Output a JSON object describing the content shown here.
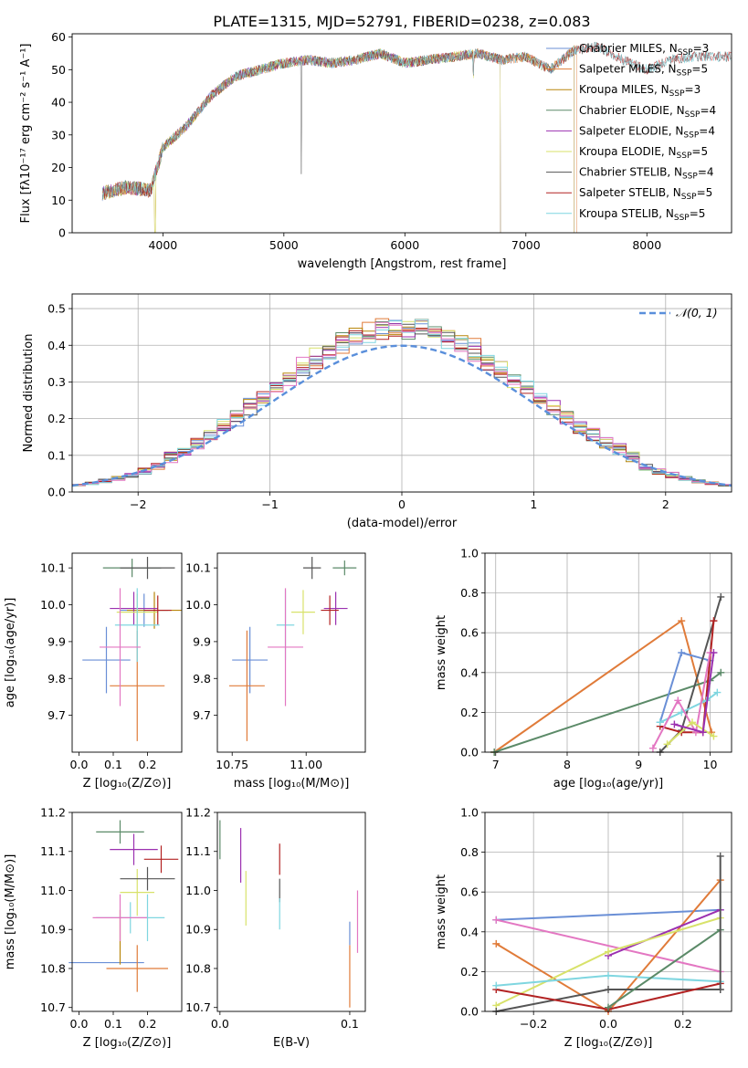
{
  "title": "PLATE=1315, MJD=52791, FIBERID=0238, z=0.083",
  "colors": {
    "chabrier_miles": "#6a8fd6",
    "salpeter_miles": "#e07b39",
    "kroupa_miles": "#b8860b",
    "chabrier_elodie": "#5b8a68",
    "salpeter_elodie": "#9b30b0",
    "kroupa_elodie": "#d8e26a",
    "chabrier_stelib": "#555555",
    "salpeter_stelib": "#b22222",
    "kroupa_stelib": "#7fd6e0",
    "pink": "#e377c2",
    "gaussian": "#5a8fdb",
    "grid": "#b0b0b0"
  },
  "chart_data": [
    {
      "type": "line",
      "name": "spectrum",
      "xlabel": "wavelength [Angstrom, rest frame]",
      "ylabel": "Flux [fλ10⁻¹⁷ erg cm⁻² s⁻¹ A⁻¹]",
      "xlim": [
        3250,
        8700
      ],
      "ylim": [
        0,
        61
      ],
      "xticks": [
        "4000",
        "5000",
        "6000",
        "7000",
        "8000"
      ],
      "yticks": [
        "0",
        "10",
        "20",
        "30",
        "40",
        "50",
        "60"
      ],
      "grid": false,
      "legend_position": "top-right",
      "x": [
        3500,
        3700,
        3900,
        4000,
        4200,
        4400,
        4600,
        4800,
        5000,
        5200,
        5400,
        5600,
        5800,
        6000,
        6200,
        6400,
        6600,
        6800,
        7000,
        7200,
        7400,
        7600,
        7800,
        8000,
        8200,
        8400
      ],
      "y": [
        12,
        14,
        13,
        26,
        33,
        42,
        48,
        50,
        52,
        53,
        52,
        53,
        55,
        52,
        53,
        54,
        55,
        53,
        54,
        50,
        56,
        57,
        53,
        50,
        53,
        54
      ],
      "series": [
        {
          "name": "Chabrier MILES, N_SSP=3",
          "label_main": "Chabrier MILES, N",
          "label_sub": "SSP",
          "label_tail": "=3",
          "xend": 7400
        },
        {
          "name": "Salpeter MILES, N_SSP=5",
          "label_main": "Salpeter MILES, N",
          "label_sub": "SSP",
          "label_tail": "=5",
          "xend": 7420
        },
        {
          "name": "Kroupa MILES, N_SSP=3",
          "label_main": "Kroupa MILES, N",
          "label_sub": "SSP",
          "label_tail": "=3",
          "xend": 7400
        },
        {
          "name": "Chabrier ELODIE, N_SSP=4",
          "label_main": "Chabrier ELODIE, N",
          "label_sub": "SSP",
          "label_tail": "=4",
          "xend": 6790
        },
        {
          "name": "Salpeter ELODIE, N_SSP=4",
          "label_main": "Salpeter ELODIE, N",
          "label_sub": "SSP",
          "label_tail": "=4",
          "xend": 6790
        },
        {
          "name": "Kroupa ELODIE, N_SSP=5",
          "label_main": "Kroupa ELODIE, N",
          "label_sub": "SSP",
          "label_tail": "=5",
          "xend": 6790
        },
        {
          "name": "Chabrier STELIB, N_SSP=4",
          "label_main": "Chabrier STELIB, N",
          "label_sub": "SSP",
          "label_tail": "=4",
          "xend": 8700
        },
        {
          "name": "Salpeter STELIB, N_SSP=5",
          "label_main": "Salpeter STELIB, N",
          "label_sub": "SSP",
          "label_tail": "=5",
          "xend": 8700
        },
        {
          "name": "Kroupa STELIB, N_SSP=5",
          "label_main": "Kroupa STELIB, N",
          "label_sub": "SSP",
          "label_tail": "=5",
          "xend": 8700
        }
      ]
    },
    {
      "type": "histogram",
      "name": "residuals",
      "xlabel": "(data-model)/error",
      "ylabel": "Normed distribution",
      "xlim": [
        -2.5,
        2.5
      ],
      "ylim": [
        0,
        0.54
      ],
      "xticks": [
        "−2",
        "−1",
        "0",
        "1",
        "2"
      ],
      "yticks": [
        "0.0",
        "0.1",
        "0.2",
        "0.3",
        "0.4",
        "0.5"
      ],
      "grid": true,
      "legend_position": "top-right",
      "legend_label": "𝒩(0, 1)",
      "bin_width": 0.1,
      "gaussian": {
        "mean": 0,
        "sigma": 1
      }
    },
    {
      "type": "scatter",
      "name": "age_vs_Z",
      "xlabel": "Z [log₁₀(Z/Z⊙)]",
      "ylabel": "age  [log₁₀(age/yr)]",
      "xlim": [
        -0.02,
        0.3
      ],
      "ylim": [
        9.6,
        10.14
      ],
      "xticks": [
        "0.0",
        "0.1",
        "0.2"
      ],
      "yticks": [
        "9.7",
        "9.8",
        "9.9",
        "10.0",
        "10.1"
      ],
      "points": [
        {
          "x": 0.19,
          "y": 9.985,
          "xerr": 0.07,
          "yerr": 0.045,
          "color": "chabrier_miles"
        },
        {
          "x": 0.17,
          "y": 9.78,
          "xerr": 0.08,
          "yerr": 0.15,
          "color": "salpeter_miles"
        },
        {
          "x": 0.22,
          "y": 9.985,
          "xerr": 0.08,
          "yerr": 0.05,
          "color": "kroupa_miles"
        },
        {
          "x": 0.155,
          "y": 10.1,
          "xerr": 0.085,
          "yerr": 0.025,
          "color": "chabrier_elodie"
        },
        {
          "x": 0.16,
          "y": 9.99,
          "xerr": 0.07,
          "yerr": 0.045,
          "color": "salpeter_elodie"
        },
        {
          "x": 0.17,
          "y": 9.98,
          "xerr": 0.06,
          "yerr": 0.05,
          "color": "kroupa_elodie"
        },
        {
          "x": 0.2,
          "y": 10.1,
          "xerr": 0.08,
          "yerr": 0.03,
          "color": "chabrier_stelib"
        },
        {
          "x": 0.23,
          "y": 9.985,
          "xerr": 0.04,
          "yerr": 0.04,
          "color": "salpeter_stelib"
        },
        {
          "x": 0.17,
          "y": 9.945,
          "xerr": 0.065,
          "yerr": 0.1,
          "color": "kroupa_stelib"
        },
        {
          "x": 0.08,
          "y": 9.85,
          "xerr": 0.07,
          "yerr": 0.09,
          "color": "chabrier_miles"
        },
        {
          "x": 0.12,
          "y": 9.885,
          "xerr": 0.06,
          "yerr": 0.16,
          "color": "pink"
        }
      ]
    },
    {
      "type": "scatter",
      "name": "age_vs_mass",
      "xlabel": "mass [log₁₀(M/M⊙)]",
      "ylabel": "",
      "xlim": [
        10.7,
        11.2
      ],
      "ylim": [
        9.6,
        10.14
      ],
      "xticks": [
        "10.75",
        "11.00"
      ],
      "yticks": [
        "9.7",
        "9.8",
        "9.9",
        "10.0",
        "10.1"
      ],
      "points": [
        {
          "x": 10.81,
          "y": 9.85,
          "xerr": 0.06,
          "yerr": 0.09,
          "color": "chabrier_miles"
        },
        {
          "x": 10.8,
          "y": 9.78,
          "xerr": 0.06,
          "yerr": 0.15,
          "color": "salpeter_miles"
        },
        {
          "x": 11.02,
          "y": 10.1,
          "xerr": 0.03,
          "yerr": 0.03,
          "color": "chabrier_stelib"
        },
        {
          "x": 11.13,
          "y": 10.1,
          "xerr": 0.04,
          "yerr": 0.02,
          "color": "chabrier_elodie"
        },
        {
          "x": 11.1,
          "y": 9.99,
          "xerr": 0.04,
          "yerr": 0.045,
          "color": "salpeter_elodie"
        },
        {
          "x": 11.08,
          "y": 9.985,
          "xerr": 0.03,
          "yerr": 0.04,
          "color": "salpeter_stelib"
        },
        {
          "x": 10.99,
          "y": 9.98,
          "xerr": 0.04,
          "yerr": 0.06,
          "color": "kroupa_elodie"
        },
        {
          "x": 10.93,
          "y": 9.945,
          "xerr": 0.03,
          "yerr": 0.095,
          "color": "kroupa_stelib"
        },
        {
          "x": 10.93,
          "y": 9.885,
          "xerr": 0.06,
          "yerr": 0.16,
          "color": "pink"
        }
      ]
    },
    {
      "type": "line",
      "name": "weight_vs_age",
      "xlabel": "age  [log₁₀(age/yr)]",
      "ylabel": "mass weight",
      "xlim": [
        6.85,
        10.3
      ],
      "ylim": [
        0,
        1
      ],
      "xticks": [
        "7",
        "8",
        "9",
        "10"
      ],
      "yticks": [
        "0.0",
        "0.2",
        "0.4",
        "0.6",
        "0.8",
        "1.0"
      ],
      "grid": true,
      "series": [
        {
          "color": "salpeter_miles",
          "x": [
            6.98,
            9.6,
            10.02
          ],
          "y": [
            0.0,
            0.66,
            0.1
          ]
        },
        {
          "color": "chabrier_elodie",
          "x": [
            6.98,
            10.0,
            10.15
          ],
          "y": [
            0.0,
            0.36,
            0.4
          ]
        },
        {
          "color": "chabrier_miles",
          "x": [
            9.3,
            9.6,
            10.0
          ],
          "y": [
            0.15,
            0.5,
            0.46
          ]
        },
        {
          "color": "chabrier_stelib",
          "x": [
            9.3,
            9.6,
            10.15
          ],
          "y": [
            0.0,
            0.11,
            0.78
          ]
        },
        {
          "color": "salpeter_stelib",
          "x": [
            9.3,
            9.6,
            9.9,
            10.05
          ],
          "y": [
            0.13,
            0.1,
            0.1,
            0.66
          ]
        },
        {
          "color": "kroupa_stelib",
          "x": [
            9.3,
            9.6,
            9.95,
            10.1
          ],
          "y": [
            0.15,
            0.2,
            0.26,
            0.3
          ]
        },
        {
          "color": "pink",
          "x": [
            9.2,
            9.55,
            9.8,
            10.0
          ],
          "y": [
            0.02,
            0.26,
            0.1,
            0.5
          ]
        },
        {
          "color": "kroupa_elodie",
          "x": [
            9.4,
            9.75,
            10.05
          ],
          "y": [
            0.04,
            0.15,
            0.08
          ]
        },
        {
          "color": "salpeter_elodie",
          "x": [
            9.5,
            9.9,
            10.05
          ],
          "y": [
            0.14,
            0.1,
            0.5
          ]
        }
      ]
    },
    {
      "type": "scatter",
      "name": "mass_vs_Z",
      "xlabel": "Z [log₁₀(Z/Z⊙)]",
      "ylabel": "mass [log₁₀(M/M⊙)]",
      "xlim": [
        -0.02,
        0.3
      ],
      "ylim": [
        10.69,
        11.2
      ],
      "xticks": [
        "0.0",
        "0.1",
        "0.2"
      ],
      "yticks": [
        "10.7",
        "10.8",
        "10.9",
        "11.0",
        "11.1",
        "11.2"
      ],
      "points": [
        {
          "x": 0.08,
          "y": 10.815,
          "xerr": 0.11,
          "yerr": 0.0,
          "color": "chabrier_miles"
        },
        {
          "x": 0.17,
          "y": 10.8,
          "xerr": 0.09,
          "yerr": 0.06,
          "color": "salpeter_miles"
        },
        {
          "x": 0.12,
          "y": 10.88,
          "xerr": 0.0,
          "yerr": 0.07,
          "color": "kroupa_miles"
        },
        {
          "x": 0.12,
          "y": 11.15,
          "xerr": 0.07,
          "yerr": 0.03,
          "color": "chabrier_elodie"
        },
        {
          "x": 0.16,
          "y": 11.105,
          "xerr": 0.07,
          "yerr": 0.04,
          "color": "salpeter_elodie"
        },
        {
          "x": 0.17,
          "y": 10.995,
          "xerr": 0.05,
          "yerr": 0.06,
          "color": "kroupa_elodie"
        },
        {
          "x": 0.2,
          "y": 11.03,
          "xerr": 0.08,
          "yerr": 0.03,
          "color": "chabrier_stelib"
        },
        {
          "x": 0.24,
          "y": 11.08,
          "xerr": 0.05,
          "yerr": 0.035,
          "color": "salpeter_stelib"
        },
        {
          "x": 0.15,
          "y": 10.93,
          "xerr": 0.1,
          "yerr": 0.04,
          "color": "kroupa_stelib"
        },
        {
          "x": 0.12,
          "y": 10.93,
          "xerr": 0.08,
          "yerr": 0.06,
          "color": "pink"
        },
        {
          "x": 0.2,
          "y": 10.93,
          "xerr": 0.0,
          "yerr": 0.06,
          "color": "kroupa_stelib"
        }
      ]
    },
    {
      "type": "scatter",
      "name": "mass_vs_ebv",
      "xlabel": "E(B-V)",
      "ylabel": "",
      "xlim": [
        -0.002,
        0.112
      ],
      "ylim": [
        10.69,
        11.2
      ],
      "xticks": [
        "0.0",
        "0.1"
      ],
      "yticks": [
        "10.7",
        "10.8",
        "10.9",
        "11.0",
        "11.1",
        "11.2"
      ],
      "points": [
        {
          "x": 0.0,
          "y": 11.13,
          "xerr": 0,
          "yerr": 0.05,
          "color": "chabrier_elodie"
        },
        {
          "x": 0.016,
          "y": 11.09,
          "xerr": 0,
          "yerr": 0.07,
          "color": "salpeter_elodie"
        },
        {
          "x": 0.02,
          "y": 10.98,
          "xerr": 0,
          "yerr": 0.07,
          "color": "kroupa_elodie"
        },
        {
          "x": 0.046,
          "y": 11.08,
          "xerr": 0,
          "yerr": 0.04,
          "color": "salpeter_stelib"
        },
        {
          "x": 0.046,
          "y": 11.0,
          "xerr": 0,
          "yerr": 0.03,
          "color": "chabrier_stelib"
        },
        {
          "x": 0.046,
          "y": 10.94,
          "xerr": 0,
          "yerr": 0.04,
          "color": "kroupa_stelib"
        },
        {
          "x": 0.1,
          "y": 10.78,
          "xerr": 0,
          "yerr": 0.08,
          "color": "salpeter_miles"
        },
        {
          "x": 0.1,
          "y": 10.89,
          "xerr": 0,
          "yerr": 0.03,
          "color": "chabrier_miles"
        },
        {
          "x": 0.106,
          "y": 10.92,
          "xerr": 0,
          "yerr": 0.08,
          "color": "pink"
        }
      ]
    },
    {
      "type": "line",
      "name": "weight_vs_Z",
      "xlabel": "Z [log₁₀(Z/Z⊙)]",
      "ylabel": "mass weight",
      "xlim": [
        -0.33,
        0.33
      ],
      "ylim": [
        0,
        1
      ],
      "xticks": [
        "−0.2",
        "0.0",
        "0.2"
      ],
      "yticks": [
        "0.0",
        "0.2",
        "0.4",
        "0.6",
        "0.8",
        "1.0"
      ],
      "grid": true,
      "series": [
        {
          "color": "chabrier_miles",
          "x": [
            -0.3,
            0.3
          ],
          "y": [
            0.46,
            0.51
          ]
        },
        {
          "color": "pink",
          "x": [
            -0.3,
            0.3
          ],
          "y": [
            0.46,
            0.2
          ]
        },
        {
          "color": "salpeter_miles",
          "x": [
            -0.3,
            0.0,
            0.3
          ],
          "y": [
            0.34,
            0.0,
            0.66
          ]
        },
        {
          "color": "salpeter_elodie",
          "x": [
            0.0,
            0.3
          ],
          "y": [
            0.28,
            0.51
          ]
        },
        {
          "color": "kroupa_elodie",
          "x": [
            -0.3,
            0.0,
            0.3
          ],
          "y": [
            0.03,
            0.3,
            0.47
          ]
        },
        {
          "color": "chabrier_stelib",
          "x": [
            -0.3,
            0.0,
            0.3
          ],
          "y": [
            0.0,
            0.11,
            0.11
          ]
        },
        {
          "color": "salpeter_stelib",
          "x": [
            -0.3,
            0.0,
            0.3
          ],
          "y": [
            0.11,
            0.01,
            0.14
          ]
        },
        {
          "color": "kroupa_stelib",
          "x": [
            -0.3,
            0.0,
            0.3
          ],
          "y": [
            0.13,
            0.18,
            0.15
          ]
        },
        {
          "color": "chabrier_elodie",
          "x": [
            0.0,
            0.3
          ],
          "y": [
            0.02,
            0.41
          ]
        },
        {
          "color": "chabrier_stelib",
          "x": [
            0.3,
            0.3
          ],
          "y": [
            0.11,
            0.78
          ]
        }
      ]
    }
  ]
}
